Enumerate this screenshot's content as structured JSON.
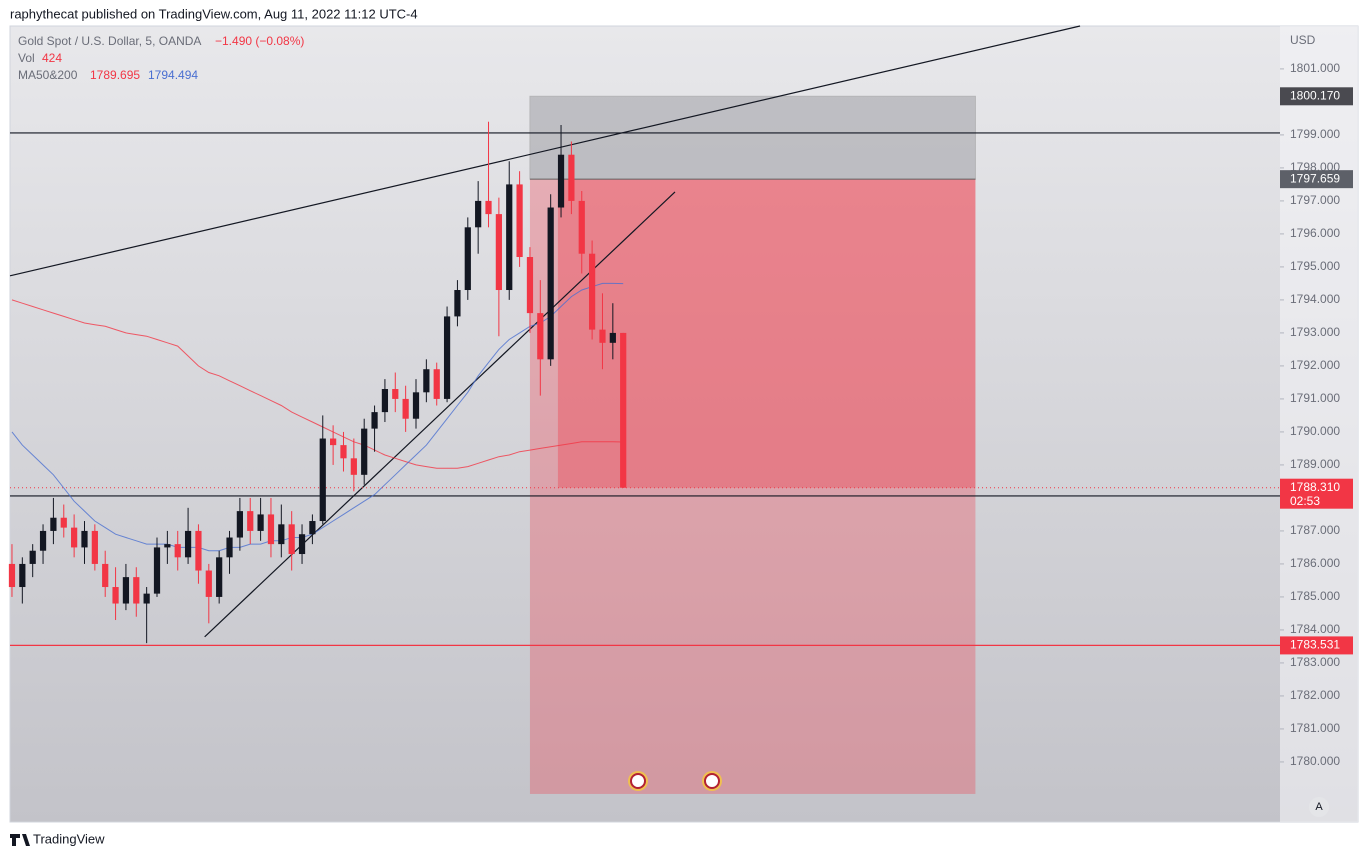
{
  "header": "raphythecat published on TradingView.com, Aug 11, 2022 11:12 UTC-4",
  "footer": "TradingView",
  "chart_data": {
    "type": "candlestick",
    "symbol": "Gold Spot / U.S. Dollar, 5, OANDA",
    "change": "−1.490 (−0.08%)",
    "volume_label": "Vol",
    "volume": 424,
    "currency": "USD",
    "scale_mode": "A",
    "up_color": "#131722",
    "down_color": "#f23645",
    "xlim": [
      -0.19,
      122.4
    ],
    "ylim": [
      1778.18,
      1802.3
    ],
    "yticks": [
      {
        "value": 1780,
        "label": "1780.000"
      },
      {
        "value": 1781,
        "label": "1781.000"
      },
      {
        "value": 1782,
        "label": "1782.000"
      },
      {
        "value": 1783,
        "label": "1783.000"
      },
      {
        "value": 1784,
        "label": "1784.000"
      },
      {
        "value": 1785,
        "label": "1785.000"
      },
      {
        "value": 1786,
        "label": "1786.000"
      },
      {
        "value": 1787,
        "label": "1787.000"
      },
      {
        "value": 1789,
        "label": "1789.000"
      },
      {
        "value": 1790,
        "label": "1790.000"
      },
      {
        "value": 1791,
        "label": "1791.000"
      },
      {
        "value": 1792,
        "label": "1792.000"
      },
      {
        "value": 1793,
        "label": "1793.000"
      },
      {
        "value": 1794,
        "label": "1794.000"
      },
      {
        "value": 1795,
        "label": "1795.000"
      },
      {
        "value": 1796,
        "label": "1796.000"
      },
      {
        "value": 1797,
        "label": "1797.000"
      },
      {
        "value": 1798,
        "label": "1798.000"
      },
      {
        "value": 1799,
        "label": "1799.000"
      },
      {
        "value": 1801,
        "label": "1801.000"
      }
    ],
    "candles": [
      [
        1786.0,
        1786.6,
        1785.0,
        1785.3
      ],
      [
        1785.3,
        1786.2,
        1784.8,
        1786.0
      ],
      [
        1786.0,
        1786.6,
        1785.6,
        1786.4
      ],
      [
        1786.4,
        1787.2,
        1786.0,
        1787.0
      ],
      [
        1787.0,
        1788.0,
        1786.6,
        1787.4
      ],
      [
        1787.4,
        1787.8,
        1786.8,
        1787.1
      ],
      [
        1787.1,
        1787.5,
        1786.2,
        1786.5
      ],
      [
        1786.5,
        1787.3,
        1786.0,
        1787.0
      ],
      [
        1787.0,
        1787.2,
        1785.8,
        1786.0
      ],
      [
        1786.0,
        1786.4,
        1785.0,
        1785.3
      ],
      [
        1785.3,
        1785.9,
        1784.3,
        1784.8
      ],
      [
        1784.8,
        1786.0,
        1784.6,
        1785.6
      ],
      [
        1785.6,
        1785.9,
        1784.4,
        1784.8
      ],
      [
        1784.8,
        1785.3,
        1783.6,
        1785.1
      ],
      [
        1785.1,
        1786.8,
        1785.0,
        1786.5
      ],
      [
        1786.5,
        1787.0,
        1786.0,
        1786.6
      ],
      [
        1786.6,
        1787.0,
        1785.8,
        1786.2
      ],
      [
        1786.2,
        1787.7,
        1786.0,
        1787.0
      ],
      [
        1787.0,
        1787.2,
        1785.4,
        1785.8
      ],
      [
        1785.8,
        1786.0,
        1784.2,
        1785.0
      ],
      [
        1785.0,
        1786.4,
        1784.8,
        1786.2
      ],
      [
        1786.2,
        1787.0,
        1785.7,
        1786.8
      ],
      [
        1786.8,
        1788.0,
        1786.4,
        1787.6
      ],
      [
        1787.6,
        1788.0,
        1786.6,
        1787.0
      ],
      [
        1787.0,
        1788.0,
        1786.7,
        1787.5
      ],
      [
        1787.5,
        1788.0,
        1786.2,
        1786.6
      ],
      [
        1786.6,
        1787.8,
        1786.2,
        1787.2
      ],
      [
        1787.2,
        1787.6,
        1785.8,
        1786.3
      ],
      [
        1786.3,
        1787.2,
        1786.0,
        1786.9
      ],
      [
        1786.9,
        1787.5,
        1786.6,
        1787.3
      ],
      [
        1787.3,
        1790.5,
        1787.2,
        1789.8
      ],
      [
        1789.8,
        1790.2,
        1789.0,
        1789.6
      ],
      [
        1789.6,
        1790.0,
        1788.8,
        1789.2
      ],
      [
        1789.2,
        1789.8,
        1788.2,
        1788.7
      ],
      [
        1788.7,
        1790.4,
        1788.4,
        1790.1
      ],
      [
        1790.1,
        1790.8,
        1789.4,
        1790.6
      ],
      [
        1790.6,
        1791.6,
        1790.3,
        1791.3
      ],
      [
        1791.3,
        1791.8,
        1790.6,
        1791.0
      ],
      [
        1791.0,
        1791.4,
        1790.0,
        1790.4
      ],
      [
        1790.4,
        1791.6,
        1790.1,
        1791.2
      ],
      [
        1791.2,
        1792.2,
        1790.9,
        1791.9
      ],
      [
        1791.9,
        1792.1,
        1790.8,
        1791.0
      ],
      [
        1791.0,
        1793.8,
        1790.9,
        1793.5
      ],
      [
        1793.5,
        1794.6,
        1793.2,
        1794.3
      ],
      [
        1794.3,
        1796.5,
        1794.0,
        1796.2
      ],
      [
        1796.2,
        1797.6,
        1795.4,
        1797.0
      ],
      [
        1797.0,
        1799.4,
        1796.2,
        1796.6
      ],
      [
        1796.6,
        1797.1,
        1792.9,
        1794.3
      ],
      [
        1794.3,
        1798.2,
        1794.0,
        1797.5
      ],
      [
        1797.5,
        1797.9,
        1795.0,
        1795.3
      ],
      [
        1795.3,
        1795.6,
        1793.0,
        1793.6
      ],
      [
        1793.6,
        1794.6,
        1791.1,
        1792.2
      ],
      [
        1792.2,
        1797.2,
        1792.0,
        1796.8
      ],
      [
        1796.8,
        1799.3,
        1796.5,
        1798.4
      ],
      [
        1798.4,
        1798.8,
        1796.6,
        1797.0
      ],
      [
        1797.0,
        1797.3,
        1794.8,
        1795.4
      ],
      [
        1795.4,
        1795.8,
        1792.8,
        1793.1
      ],
      [
        1793.1,
        1794.2,
        1791.9,
        1792.7
      ],
      [
        1792.7,
        1793.9,
        1792.2,
        1793.0
      ],
      [
        1793.0,
        1793.0,
        1788.3,
        1788.31
      ]
    ],
    "last_price": {
      "label": "1788.310",
      "countdown": "02:53",
      "color": "#f23645"
    },
    "ma": {
      "label": "MA50&200",
      "series": [
        {
          "color": "#f23645",
          "values": [
            1794.0,
            1793.9,
            1793.8,
            1793.7,
            1793.6,
            1793.5,
            1793.4,
            1793.3,
            1793.25,
            1793.2,
            1793.1,
            1793.0,
            1792.95,
            1792.9,
            1792.8,
            1792.7,
            1792.6,
            1792.3,
            1792.0,
            1791.8,
            1791.7,
            1791.55,
            1791.4,
            1791.25,
            1791.1,
            1790.95,
            1790.8,
            1790.6,
            1790.45,
            1790.3,
            1790.15,
            1790.0,
            1789.85,
            1789.7,
            1789.6,
            1789.45,
            1789.3,
            1789.2,
            1789.1,
            1789.0,
            1788.95,
            1788.9,
            1788.9,
            1788.9,
            1788.95,
            1789.05,
            1789.15,
            1789.25,
            1789.3,
            1789.4,
            1789.45,
            1789.5,
            1789.55,
            1789.6,
            1789.65,
            1789.7,
            1789.7,
            1789.7,
            1789.7,
            1789.695
          ]
        },
        {
          "color": "#4a6fd1",
          "values": [
            1790.0,
            1789.6,
            1789.3,
            1789.0,
            1788.7,
            1788.3,
            1787.9,
            1787.6,
            1787.3,
            1787.1,
            1786.9,
            1786.8,
            1786.7,
            1786.6,
            1786.6,
            1786.6,
            1786.5,
            1786.5,
            1786.5,
            1786.4,
            1786.4,
            1786.5,
            1786.5,
            1786.6,
            1786.6,
            1786.7,
            1786.7,
            1786.8,
            1786.8,
            1786.9,
            1787.1,
            1787.3,
            1787.5,
            1787.7,
            1787.9,
            1788.1,
            1788.4,
            1788.7,
            1789.0,
            1789.3,
            1789.6,
            1790.0,
            1790.4,
            1790.8,
            1791.2,
            1791.7,
            1792.1,
            1792.5,
            1792.8,
            1793.0,
            1793.2,
            1793.3,
            1793.5,
            1793.8,
            1794.1,
            1794.3,
            1794.4,
            1794.5,
            1794.5,
            1794.494
          ]
        }
      ]
    },
    "hlines": [
      {
        "value": 1799.06,
        "color": "#131722"
      },
      {
        "value": 1788.06,
        "color": "#131722"
      },
      {
        "value": 1783.531,
        "label": "1783.531",
        "color": "#f23645"
      }
    ],
    "trendlines": [
      {
        "points": [
          [
            -0.19,
            1794.73
          ],
          [
            103.1,
            1802.3
          ]
        ],
        "color": "#131722"
      },
      {
        "points": [
          [
            18.6,
            1783.79
          ],
          [
            64.0,
            1797.27
          ]
        ],
        "color": "#131722"
      }
    ],
    "position": {
      "start": 50.0,
      "end": 93.0,
      "stop": {
        "value": 1800.17,
        "label": "1800.170"
      },
      "entry": {
        "value": 1797.659,
        "label": "1797.659"
      },
      "target": 1779.03
    }
  }
}
